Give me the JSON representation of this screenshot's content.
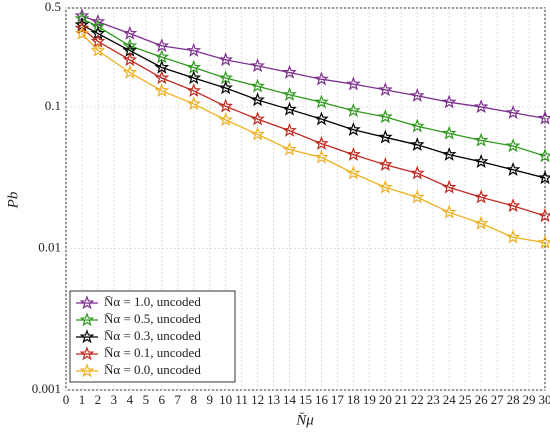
{
  "chart_data": {
    "type": "line",
    "xlabel": "N̄μ",
    "ylabel": "Pb",
    "x": [
      1,
      2,
      4,
      6,
      8,
      10,
      12,
      14,
      16,
      18,
      20,
      22,
      24,
      26,
      28,
      30
    ],
    "xlim": [
      0,
      30
    ],
    "xticks": [
      0,
      1,
      2,
      3,
      4,
      5,
      6,
      7,
      8,
      9,
      10,
      11,
      12,
      13,
      14,
      15,
      16,
      17,
      18,
      19,
      20,
      21,
      22,
      23,
      24,
      25,
      26,
      27,
      28,
      29,
      30
    ],
    "ylim": [
      0.001,
      0.5
    ],
    "yticks": [
      0.001,
      0.01,
      0.1,
      0.5
    ],
    "log_y": true,
    "grid": true,
    "legend_position": "lower left",
    "series": [
      {
        "name": "N̄α = 1.0, uncoded",
        "color": "#7e2f8e",
        "values": [
          0.44,
          0.4,
          0.33,
          0.27,
          0.25,
          0.215,
          0.195,
          0.175,
          0.157,
          0.145,
          0.132,
          0.12,
          0.108,
          0.1,
          0.091,
          0.083
        ]
      },
      {
        "name": "N̄α = 0.5, uncoded",
        "color": "#2e9a1c",
        "values": [
          0.42,
          0.37,
          0.27,
          0.225,
          0.19,
          0.16,
          0.14,
          0.122,
          0.108,
          0.094,
          0.085,
          0.073,
          0.065,
          0.058,
          0.053,
          0.045
        ]
      },
      {
        "name": "N̄α = 0.3, uncoded",
        "color": "#000000",
        "values": [
          0.38,
          0.33,
          0.25,
          0.19,
          0.16,
          0.136,
          0.112,
          0.096,
          0.082,
          0.069,
          0.061,
          0.054,
          0.046,
          0.041,
          0.036,
          0.0315
        ]
      },
      {
        "name": "N̄α = 0.1, uncoded",
        "color": "#c0281c",
        "values": [
          0.36,
          0.29,
          0.215,
          0.16,
          0.13,
          0.101,
          0.082,
          0.068,
          0.055,
          0.046,
          0.039,
          0.034,
          0.027,
          0.023,
          0.02,
          0.017
        ]
      },
      {
        "name": "N̄α = 0.0, uncoded",
        "color": "#edb120",
        "values": [
          0.33,
          0.25,
          0.175,
          0.13,
          0.105,
          0.081,
          0.064,
          0.05,
          0.044,
          0.034,
          0.027,
          0.023,
          0.018,
          0.015,
          0.012,
          0.011
        ]
      }
    ]
  }
}
